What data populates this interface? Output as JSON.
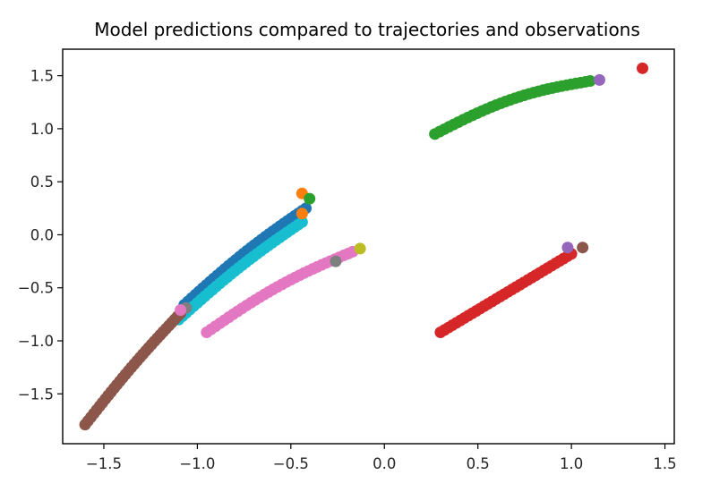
{
  "chart_data": {
    "type": "scatter",
    "title": "Model predictions compared to trajectories and observations",
    "xlabel": "",
    "ylabel": "",
    "xlim": [
      -1.72,
      1.55
    ],
    "ylim": [
      -1.97,
      1.75
    ],
    "grid": false,
    "xticks": [
      -1.5,
      -1.0,
      -0.5,
      0.0,
      0.5,
      1.0,
      1.5
    ],
    "yticks": [
      -1.5,
      -1.0,
      -0.5,
      0.0,
      0.5,
      1.0,
      1.5
    ],
    "xtick_labels": [
      "−1.5",
      "−1.0",
      "−0.5",
      "0.0",
      "0.5",
      "1.0",
      "1.5"
    ],
    "ytick_labels": [
      "−1.5",
      "−1.0",
      "−0.5",
      "0.0",
      "0.5",
      "1.0",
      "1.5"
    ],
    "series": [
      {
        "color": "#1f77b4",
        "curve": {
          "from": [
            -1.07,
            -0.66
          ],
          "to": [
            -0.42,
            0.25
          ],
          "bend": 0.04
        },
        "count": 34
      },
      {
        "color": "#17becf",
        "curve": {
          "from": [
            -1.1,
            -0.8
          ],
          "to": [
            -0.44,
            0.12
          ],
          "bend": 0.04
        },
        "count": 34
      },
      {
        "color": "#e377c2",
        "curve": {
          "from": [
            -0.95,
            -0.92
          ],
          "to": [
            -0.17,
            -0.16
          ],
          "bend": 0.06
        },
        "count": 34
      },
      {
        "color": "#8c564b",
        "curve": {
          "from": [
            -1.6,
            -1.79
          ],
          "to": [
            -1.09,
            -0.74
          ],
          "bend": 0.03
        },
        "count": 34
      },
      {
        "color": "#2ca02c",
        "curve": {
          "from": [
            0.27,
            0.95
          ],
          "to": [
            1.1,
            1.45
          ],
          "bend": 0.08
        },
        "count": 34
      },
      {
        "color": "#d62728",
        "curve": {
          "from": [
            0.3,
            -0.92
          ],
          "to": [
            1.0,
            -0.18
          ],
          "bend": 0.0
        },
        "count": 34
      }
    ],
    "markers": [
      {
        "color": "#ff7f0e",
        "x": -0.44,
        "y": 0.39
      },
      {
        "color": "#2ca02c",
        "x": -0.4,
        "y": 0.34
      },
      {
        "color": "#ff7f0e",
        "x": -0.44,
        "y": 0.2
      },
      {
        "color": "#bcbd22",
        "x": -0.13,
        "y": -0.13
      },
      {
        "color": "#7f7f7f",
        "x": -0.26,
        "y": -0.25
      },
      {
        "color": "#7f7f7f",
        "x": -1.06,
        "y": -0.69
      },
      {
        "color": "#e377c2",
        "x": -1.09,
        "y": -0.71
      },
      {
        "color": "#9467bd",
        "x": 1.15,
        "y": 1.46
      },
      {
        "color": "#d62728",
        "x": 1.38,
        "y": 1.57
      },
      {
        "color": "#9467bd",
        "x": 0.98,
        "y": -0.12
      },
      {
        "color": "#8c564b",
        "x": 1.06,
        "y": -0.12
      }
    ]
  }
}
